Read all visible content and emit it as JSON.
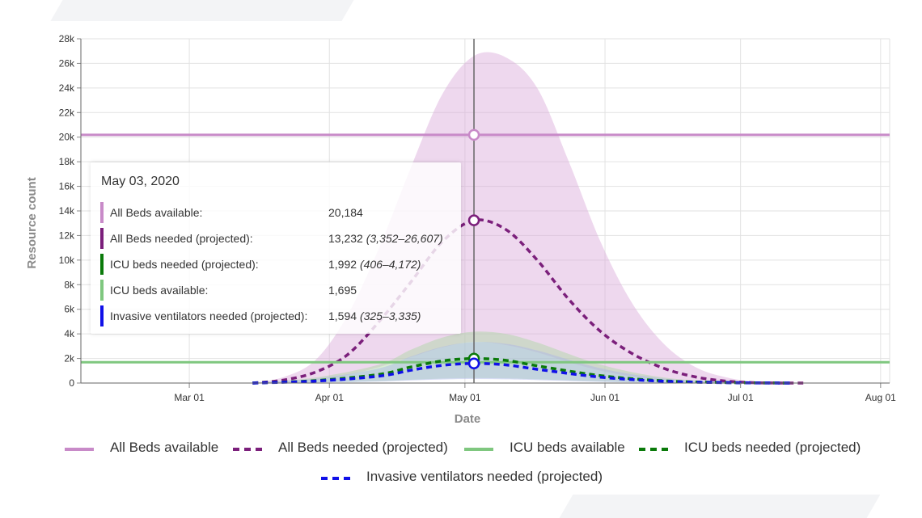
{
  "chart_data": {
    "type": "line",
    "xlabel": "Date",
    "ylabel": "Resource count",
    "ylim": [
      0,
      28000
    ],
    "xlim": [
      "2020-02-06",
      "2020-08-03"
    ],
    "y_ticks": [
      "0",
      "2k",
      "4k",
      "6k",
      "8k",
      "10k",
      "12k",
      "14k",
      "16k",
      "18k",
      "20k",
      "22k",
      "24k",
      "26k",
      "28k"
    ],
    "x_ticks": [
      {
        "date": "2020-03-01",
        "label": "Mar 01"
      },
      {
        "date": "2020-04-01",
        "label": "Apr 01"
      },
      {
        "date": "2020-05-01",
        "label": "May 01"
      },
      {
        "date": "2020-06-01",
        "label": "Jun 01"
      },
      {
        "date": "2020-07-01",
        "label": "Jul 01"
      },
      {
        "date": "2020-08-01",
        "label": "Aug 01"
      }
    ],
    "grid": true,
    "legend_position": "bottom",
    "hover_date": "2020-05-03",
    "series": [
      {
        "name": "All Beds available",
        "color": "#c88ac8",
        "style": "solid",
        "x": [
          "2020-02-06",
          "2020-08-03"
        ],
        "values": [
          20184,
          20184
        ]
      },
      {
        "name": "All Beds needed (projected)",
        "color": "#7b1f7b",
        "style": "dashed",
        "band_color": "#d9a8d9",
        "x": [
          "2020-03-15",
          "2020-03-22",
          "2020-03-29",
          "2020-04-05",
          "2020-04-12",
          "2020-04-19",
          "2020-04-26",
          "2020-05-03",
          "2020-05-10",
          "2020-05-17",
          "2020-05-24",
          "2020-05-31",
          "2020-06-07",
          "2020-06-14",
          "2020-06-21",
          "2020-06-28",
          "2020-07-05",
          "2020-07-15"
        ],
        "values": [
          0,
          250,
          900,
          2300,
          5000,
          8200,
          11500,
          13232,
          12500,
          10000,
          6800,
          4200,
          2400,
          1200,
          500,
          150,
          20,
          0
        ],
        "lower": [
          0,
          50,
          250,
          650,
          1300,
          2100,
          2900,
          3352,
          3100,
          2500,
          1700,
          1000,
          550,
          250,
          90,
          25,
          5,
          0
        ],
        "upper": [
          0,
          500,
          1900,
          5500,
          11000,
          17500,
          23500,
          26607,
          26500,
          24000,
          18000,
          11500,
          6500,
          3200,
          1300,
          450,
          90,
          0
        ]
      },
      {
        "name": "ICU beds available",
        "color": "#7fc77f",
        "style": "solid",
        "x": [
          "2020-02-06",
          "2020-08-03"
        ],
        "values": [
          1695,
          1695
        ]
      },
      {
        "name": "ICU beds needed (projected)",
        "color": "#0a7a0a",
        "style": "dashed",
        "band_color": "#a8d8a0",
        "x": [
          "2020-03-15",
          "2020-03-29",
          "2020-04-12",
          "2020-04-19",
          "2020-04-26",
          "2020-05-03",
          "2020-05-10",
          "2020-05-17",
          "2020-05-31",
          "2020-06-14",
          "2020-06-28",
          "2020-07-12"
        ],
        "values": [
          0,
          200,
          700,
          1300,
          1800,
          1992,
          1850,
          1400,
          600,
          180,
          40,
          0
        ],
        "lower": [
          0,
          50,
          150,
          260,
          360,
          406,
          380,
          300,
          130,
          40,
          10,
          0
        ],
        "upper": [
          0,
          450,
          1500,
          2700,
          3700,
          4172,
          4000,
          3300,
          1500,
          450,
          100,
          0
        ]
      },
      {
        "name": "Invasive ventilators needed (projected)",
        "color": "#1010e8",
        "style": "dashed",
        "band_color": "#a8b4e8",
        "x": [
          "2020-03-15",
          "2020-03-29",
          "2020-04-12",
          "2020-04-19",
          "2020-04-26",
          "2020-05-03",
          "2020-05-10",
          "2020-05-17",
          "2020-05-31",
          "2020-06-14",
          "2020-06-28",
          "2020-07-12"
        ],
        "values": [
          0,
          160,
          560,
          1040,
          1440,
          1594,
          1480,
          1120,
          480,
          145,
          30,
          0
        ],
        "lower": [
          0,
          40,
          120,
          210,
          290,
          325,
          300,
          240,
          100,
          30,
          8,
          0
        ],
        "upper": [
          0,
          360,
          1200,
          2150,
          2950,
          3335,
          3200,
          2650,
          1200,
          360,
          80,
          0
        ]
      }
    ]
  },
  "tooltip": {
    "date": "May 03, 2020",
    "rows": [
      {
        "label": "All Beds available:",
        "value": "20,184",
        "range": "",
        "color": "#c88ac8"
      },
      {
        "label": "All Beds needed (projected):",
        "value": "13,232",
        "range": "(3,352–26,607)",
        "color": "#7b1f7b"
      },
      {
        "label": "ICU beds needed (projected):",
        "value": "1,992",
        "range": "(406–4,172)",
        "color": "#0a7a0a"
      },
      {
        "label": "ICU beds available:",
        "value": "1,695",
        "range": "",
        "color": "#7fc77f"
      },
      {
        "label": "Invasive ventilators needed (projected):",
        "value": "1,594",
        "range": "(325–3,335)",
        "color": "#1010e8"
      }
    ]
  },
  "legend": [
    {
      "label": "All Beds available",
      "color": "#c88ac8",
      "style": "solid"
    },
    {
      "label": "All Beds needed (projected)",
      "color": "#7b1f7b",
      "style": "dashed"
    },
    {
      "label": "ICU beds available",
      "color": "#7fc77f",
      "style": "solid"
    },
    {
      "label": "ICU beds needed (projected)",
      "color": "#0a7a0a",
      "style": "dashed"
    },
    {
      "label": "Invasive ventilators needed (projected)",
      "color": "#1010e8",
      "style": "dashed"
    }
  ]
}
